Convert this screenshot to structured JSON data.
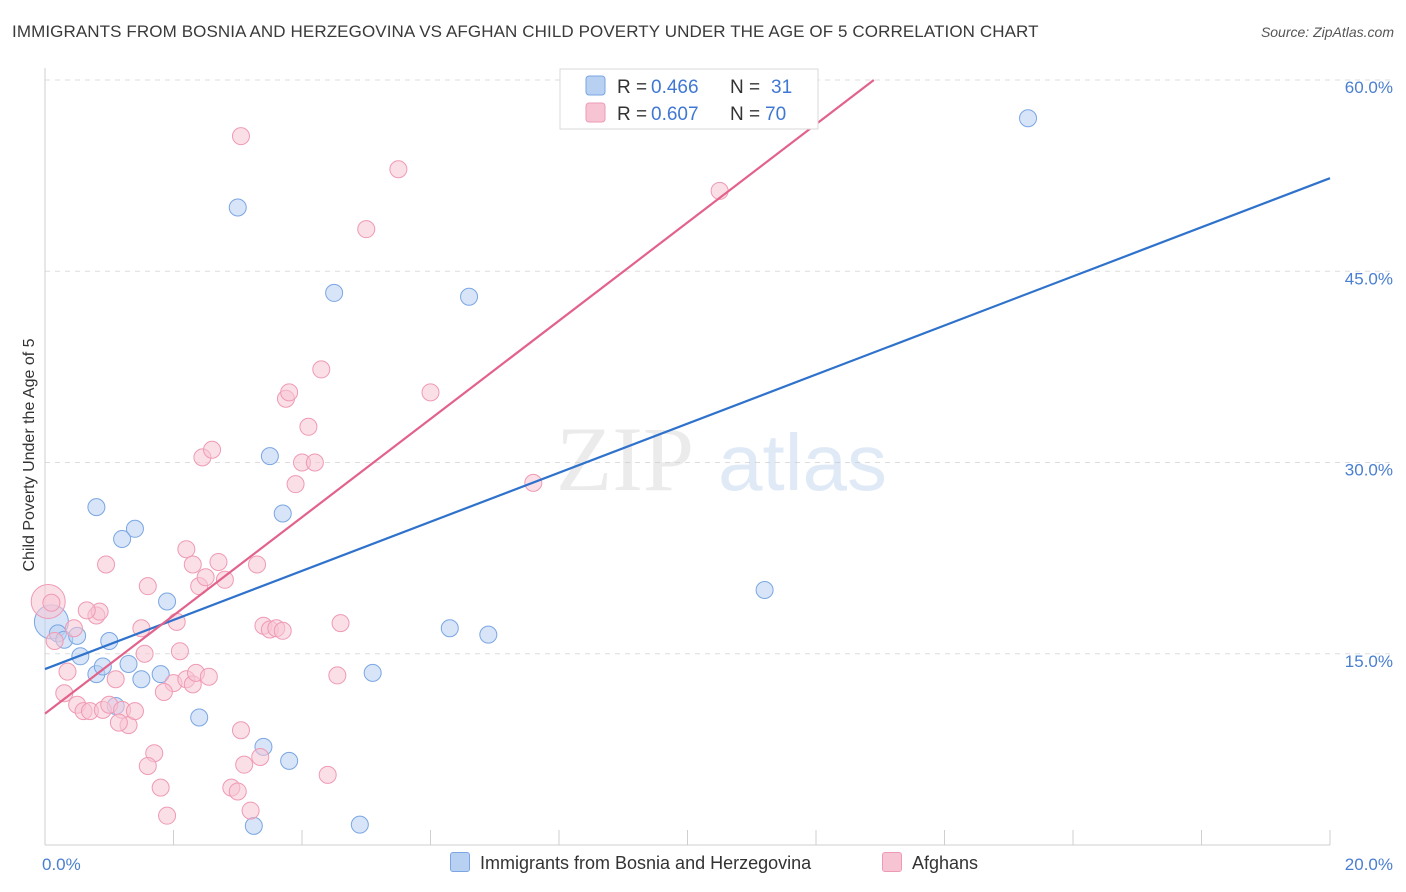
{
  "title": "IMMIGRANTS FROM BOSNIA AND HERZEGOVINA VS AFGHAN CHILD POVERTY UNDER THE AGE OF 5 CORRELATION CHART",
  "source": "Source: ZipAtlas.com",
  "watermark": {
    "zip": "ZIP",
    "atlas": "atlas"
  },
  "colors": {
    "blue_fill": "#b8d0f2",
    "blue_stroke": "#7aa6e3",
    "blue_line": "#2f72cc",
    "pink_fill": "#f7c4d4",
    "pink_stroke": "#ef9ab4",
    "pink_line": "#e2628b",
    "tick": "#4a7fd0",
    "grid": "#dddddd"
  },
  "legend": {
    "rows": [
      {
        "r_label": "R = ",
        "r_value": "0.466",
        "n_label": "N = ",
        "n_value": "31"
      },
      {
        "r_label": "R = ",
        "r_value": "0.607",
        "n_label": "N = ",
        "n_value": "70"
      }
    ]
  },
  "bottom_legend": {
    "series1": "Immigrants from Bosnia and Herzegovina",
    "series2": "Afghans"
  },
  "chart_data": {
    "type": "scatter",
    "title": "IMMIGRANTS FROM BOSNIA AND HERZEGOVINA VS AFGHAN CHILD POVERTY UNDER THE AGE OF 5 CORRELATION CHART",
    "xlabel": "",
    "ylabel": "Child Poverty Under the Age of 5",
    "xlim": [
      0,
      20
    ],
    "ylim": [
      0,
      60
    ],
    "x_tick_labels": [
      "0.0%",
      "20.0%"
    ],
    "y_ticks": [
      15,
      30,
      45,
      60
    ],
    "y_tick_labels": [
      "15.0%",
      "30.0%",
      "45.0%",
      "60.0%"
    ],
    "series": [
      {
        "name": "Immigrants from Bosnia and Herzegovina",
        "color": "blue",
        "R": 0.466,
        "N": 31,
        "trend": {
          "x": [
            0,
            20
          ],
          "y": [
            13.8,
            52.3
          ]
        },
        "points": [
          [
            0.1,
            17.5,
            "big"
          ],
          [
            0.2,
            16.6
          ],
          [
            0.3,
            16.1
          ],
          [
            0.5,
            16.4
          ],
          [
            0.55,
            14.8
          ],
          [
            0.8,
            13.4
          ],
          [
            1.0,
            16.0
          ],
          [
            1.3,
            14.2
          ],
          [
            1.5,
            13.0
          ],
          [
            1.8,
            13.4
          ],
          [
            1.4,
            24.8
          ],
          [
            1.9,
            19.1
          ],
          [
            2.4,
            10.0
          ],
          [
            1.1,
            10.9
          ],
          [
            1.2,
            24.0
          ],
          [
            3.0,
            50.0
          ],
          [
            3.5,
            30.5
          ],
          [
            3.7,
            26.0
          ],
          [
            4.5,
            43.3
          ],
          [
            4.9,
            1.6
          ],
          [
            3.8,
            6.6
          ],
          [
            3.4,
            7.7
          ],
          [
            3.25,
            1.5
          ],
          [
            5.1,
            13.5
          ],
          [
            6.3,
            17.0
          ],
          [
            6.6,
            43.0
          ],
          [
            6.9,
            16.5
          ],
          [
            11.2,
            20.0
          ],
          [
            15.3,
            57.0
          ],
          [
            0.8,
            26.5
          ],
          [
            0.9,
            14.0
          ]
        ]
      },
      {
        "name": "Afghans",
        "color": "pink",
        "R": 0.607,
        "N": 70,
        "trend": {
          "x": [
            0,
            12.9
          ],
          "y": [
            10.3,
            60.0
          ]
        },
        "points": [
          [
            0.05,
            19.1,
            "big"
          ],
          [
            0.1,
            19.0
          ],
          [
            0.15,
            16.0
          ],
          [
            0.3,
            11.9
          ],
          [
            0.35,
            13.6
          ],
          [
            0.5,
            11.0
          ],
          [
            0.6,
            10.5
          ],
          [
            0.7,
            10.5
          ],
          [
            0.8,
            18.0
          ],
          [
            0.85,
            18.3
          ],
          [
            0.9,
            10.6
          ],
          [
            1.0,
            11.0
          ],
          [
            1.1,
            13.0
          ],
          [
            1.2,
            10.6
          ],
          [
            1.3,
            9.4
          ],
          [
            1.4,
            10.5
          ],
          [
            1.5,
            17.0
          ],
          [
            1.6,
            20.3
          ],
          [
            1.7,
            7.2
          ],
          [
            1.8,
            4.5
          ],
          [
            1.9,
            2.3
          ],
          [
            2.0,
            12.7
          ],
          [
            2.1,
            15.2
          ],
          [
            2.2,
            13.0
          ],
          [
            2.3,
            12.6
          ],
          [
            2.2,
            23.2
          ],
          [
            2.3,
            22.0
          ],
          [
            2.4,
            20.3
          ],
          [
            2.5,
            21.0
          ],
          [
            2.45,
            30.4
          ],
          [
            2.6,
            31.0
          ],
          [
            2.7,
            22.2
          ],
          [
            2.8,
            20.8
          ],
          [
            2.9,
            4.5
          ],
          [
            3.0,
            4.2
          ],
          [
            3.1,
            6.3
          ],
          [
            3.2,
            2.7
          ],
          [
            3.3,
            22.0
          ],
          [
            3.4,
            17.2
          ],
          [
            3.5,
            16.9
          ],
          [
            3.6,
            17.0
          ],
          [
            3.7,
            16.8
          ],
          [
            3.75,
            35.0
          ],
          [
            3.8,
            35.5
          ],
          [
            3.9,
            28.3
          ],
          [
            4.0,
            30.0
          ],
          [
            4.1,
            32.8
          ],
          [
            4.2,
            30.0
          ],
          [
            4.3,
            37.3
          ],
          [
            4.4,
            5.5
          ],
          [
            3.05,
            55.6
          ],
          [
            5.5,
            53.0
          ],
          [
            5.0,
            48.3
          ],
          [
            6.0,
            35.5
          ],
          [
            7.6,
            28.4
          ],
          [
            10.5,
            51.3
          ],
          [
            1.6,
            6.2
          ],
          [
            1.55,
            15.0
          ],
          [
            0.45,
            17.0
          ],
          [
            0.65,
            18.4
          ],
          [
            0.95,
            22.0
          ],
          [
            1.15,
            9.6
          ],
          [
            2.05,
            17.5
          ],
          [
            2.35,
            13.5
          ],
          [
            2.55,
            13.2
          ],
          [
            3.05,
            9.0
          ],
          [
            3.35,
            6.9
          ],
          [
            4.6,
            17.4
          ],
          [
            4.55,
            13.3
          ],
          [
            1.85,
            12.0
          ]
        ]
      }
    ]
  }
}
